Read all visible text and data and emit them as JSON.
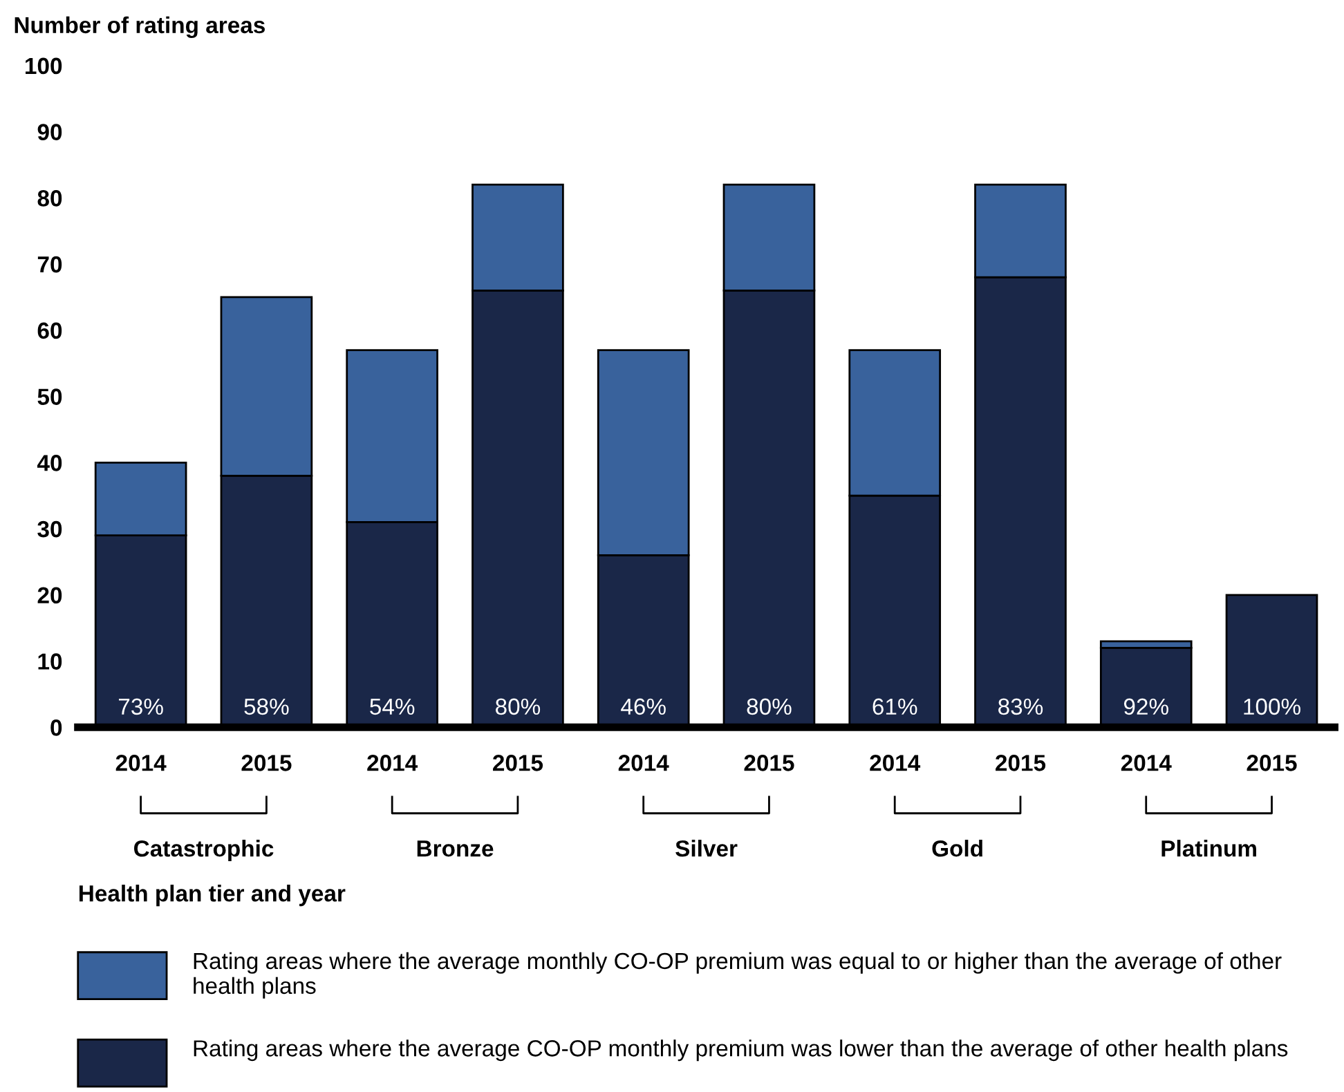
{
  "chart_data": {
    "type": "bar",
    "stacked": true,
    "ylabel": "Number of rating areas",
    "xlabel": "Health plan tier and year",
    "categories": [
      "2014",
      "2015",
      "2014",
      "2015",
      "2014",
      "2015",
      "2014",
      "2015",
      "2014",
      "2015"
    ],
    "series": [
      {
        "name": "Rating areas where the average CO-OP monthly premium was lower than the average of other health plans",
        "color": "#1a2748",
        "values": [
          29,
          38,
          31,
          66,
          26,
          66,
          35,
          68,
          12,
          20
        ]
      },
      {
        "name": "Rating areas where the average monthly CO-OP premium was equal to or higher than the average of other health plans",
        "color": "#39629c",
        "values": [
          11,
          27,
          26,
          16,
          31,
          16,
          22,
          14,
          1,
          0
        ]
      }
    ],
    "annotations": [
      "73%",
      "58%",
      "54%",
      "80%",
      "46%",
      "80%",
      "61%",
      "83%",
      "92%",
      "100%",
      "Catastrophic",
      "Bronze",
      "Silver",
      "Gold",
      "Platinum"
    ],
    "ylim": [
      0,
      100
    ],
    "yticks": [
      0,
      10,
      20,
      30,
      40,
      50,
      60,
      70,
      80,
      90,
      100
    ],
    "grid": false,
    "legend": "bottom"
  }
}
